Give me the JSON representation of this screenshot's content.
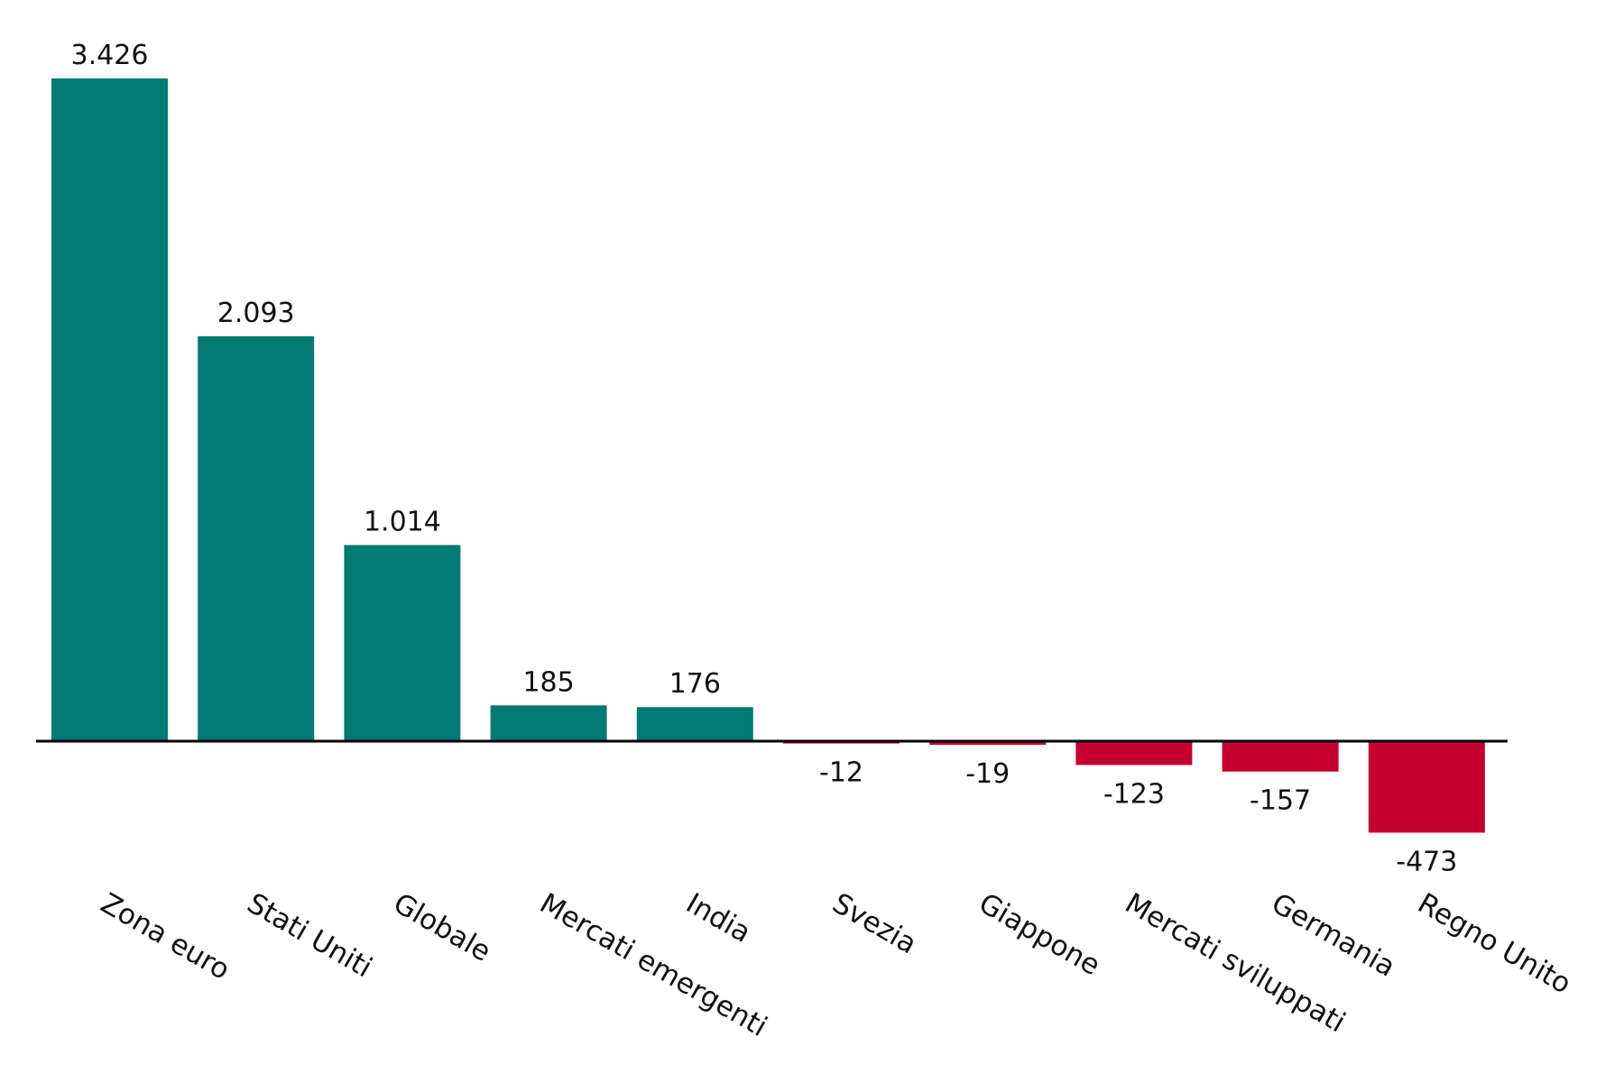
{
  "chart_data": {
    "type": "bar",
    "categories": [
      "Zona euro",
      "Stati Uniti",
      "Globale",
      "Mercati emergenti",
      "India",
      "Svezia",
      "Giappone",
      "Mercati sviluppati",
      "Germania",
      "Regno Unito"
    ],
    "values": [
      3426,
      2093,
      1014,
      185,
      176,
      -12,
      -19,
      -123,
      -157,
      -473
    ],
    "value_labels": [
      "3.426",
      "2.093",
      "1.014",
      "185",
      "176",
      "-12",
      "-19",
      "-123",
      "-157",
      "-473"
    ],
    "title": "",
    "xlabel": "",
    "ylabel": "",
    "ylim": [
      -473,
      3426
    ],
    "grid": false,
    "legend": "none",
    "colors": {
      "positive": "#007a73",
      "negative": "#c3002f",
      "axis": "#000000"
    }
  }
}
